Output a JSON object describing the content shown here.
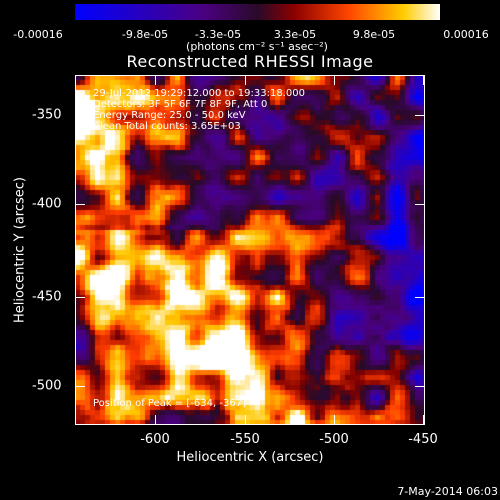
{
  "colorbar": {
    "tick_labels": [
      "-0.00016",
      "-9.8e-05",
      "-3.3e-05",
      "3.3e-05",
      "9.8e-05",
      "0.00016"
    ],
    "unit_label": "(photons cm⁻² s⁻¹ asec⁻²)",
    "range": [
      -0.00016,
      0.00016
    ]
  },
  "chart_data": {
    "type": "heatmap",
    "title": "Reconstructed RHESSI Image",
    "xlabel": "Heliocentric X (arcsec)",
    "ylabel": "Heliocentric Y (arcsec)",
    "xlim": [
      -640,
      -450
    ],
    "ylim": [
      -520,
      -330
    ],
    "x_ticks": [
      "-600",
      "-550",
      "-500",
      "-450"
    ],
    "y_ticks": [
      "-350",
      "-400",
      "-450",
      "-500"
    ],
    "peak_position": [
      -634,
      -367
    ],
    "colormap": [
      "#1010ff",
      "#4b0082",
      "#800000",
      "#ff3300",
      "#ffcc00",
      "#ffffff"
    ]
  },
  "annotations": {
    "time_range": "29-Jul-2012 19:29:12.000 to 19:33:18.000",
    "detectors": "Detectors: 3F 5F 6F 7F 8F 9F, Att 0",
    "energy_range": "Energy Range: 25.0 - 50.0 keV",
    "method_counts": "Clean    Total counts: 3.65E+03",
    "peak_position": "Position of Peak = [-634, -367]"
  },
  "footer": {
    "date": "7-May-2014 06:03"
  }
}
